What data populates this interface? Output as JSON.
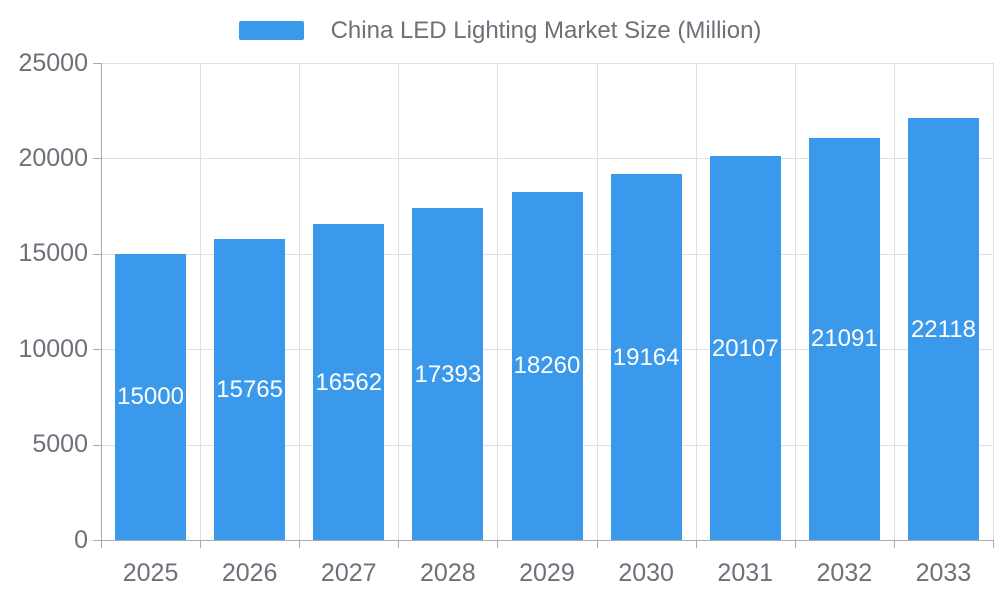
{
  "chart_data": {
    "type": "bar",
    "title": "China LED Lighting Market Size (Million)",
    "categories": [
      "2025",
      "2026",
      "2027",
      "2028",
      "2029",
      "2030",
      "2031",
      "2032",
      "2033"
    ],
    "values": [
      15000,
      15765,
      16562,
      17393,
      18260,
      19164,
      20107,
      21091,
      22118
    ],
    "xlabel": "",
    "ylabel": "",
    "ylim": [
      0,
      25000
    ],
    "yticks": [
      0,
      5000,
      10000,
      15000,
      20000,
      25000
    ],
    "grid": "on",
    "legend_position": "top-center",
    "bar_label_position": "inside-middle",
    "colors": {
      "bar": "#3b99ec",
      "bar_label": "#ffffff",
      "axis_line": "#aaaaaa",
      "grid_line": "#e0e0e0",
      "text": "#6e7079",
      "background": "#ffffff"
    }
  }
}
